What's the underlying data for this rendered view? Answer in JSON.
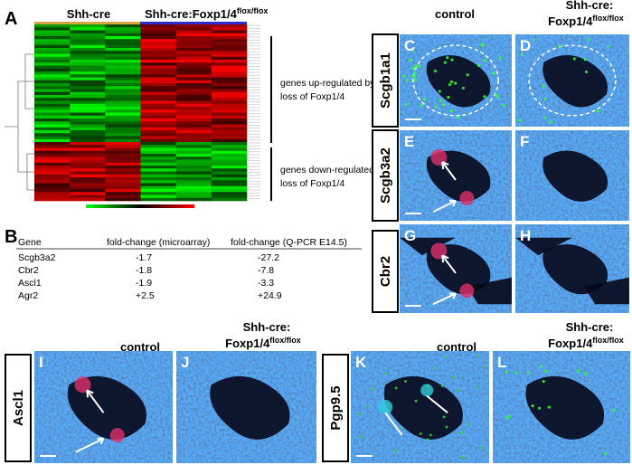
{
  "panel_A": {
    "letter": "A",
    "groups": [
      {
        "name": "Shh-cre"
      },
      {
        "name": "Shh-cre:Foxp1/4",
        "superscript": "flox/flox"
      }
    ],
    "clusters": [
      [
        "genes up-regulated by",
        "loss of Foxp1/4"
      ],
      [
        "genes down-regulated by",
        "loss of Foxp1/4"
      ]
    ]
  },
  "panel_B": {
    "letter": "B",
    "header": [
      "Gene",
      "fold-change (microarray)",
      "fold-change (Q-PCR E14.5)"
    ],
    "rows": [
      [
        "Scgb3a2",
        "-1.7",
        "-27.2"
      ],
      [
        "Cbr2",
        "-1.8",
        "-7.8"
      ],
      [
        "Ascl1",
        "-1.9",
        "-3.3"
      ],
      [
        "Agr2",
        "+2.5",
        "+24.9"
      ]
    ]
  },
  "headers": [
    {
      "control": "control",
      "mutant": [
        "Shh-cre:",
        "Foxp1/4"
      ],
      "superscript": "flox/flox"
    },
    {
      "control": "control",
      "mutant": [
        "Shh-cre:",
        "Foxp1/4"
      ],
      "superscript": "flox/flox"
    },
    {
      "control": "control",
      "mutant": [
        "Shh-cre:",
        "Foxp1/4"
      ],
      "superscript": "flox/flox"
    }
  ],
  "markers": [
    "Scgb1a1",
    "Scgb3a2",
    "Cbr2",
    "Ascl1",
    "Pgp9.5"
  ],
  "panel_letters": [
    "C",
    "D",
    "E",
    "F",
    "G",
    "H",
    "I",
    "J",
    "K",
    "L"
  ]
}
